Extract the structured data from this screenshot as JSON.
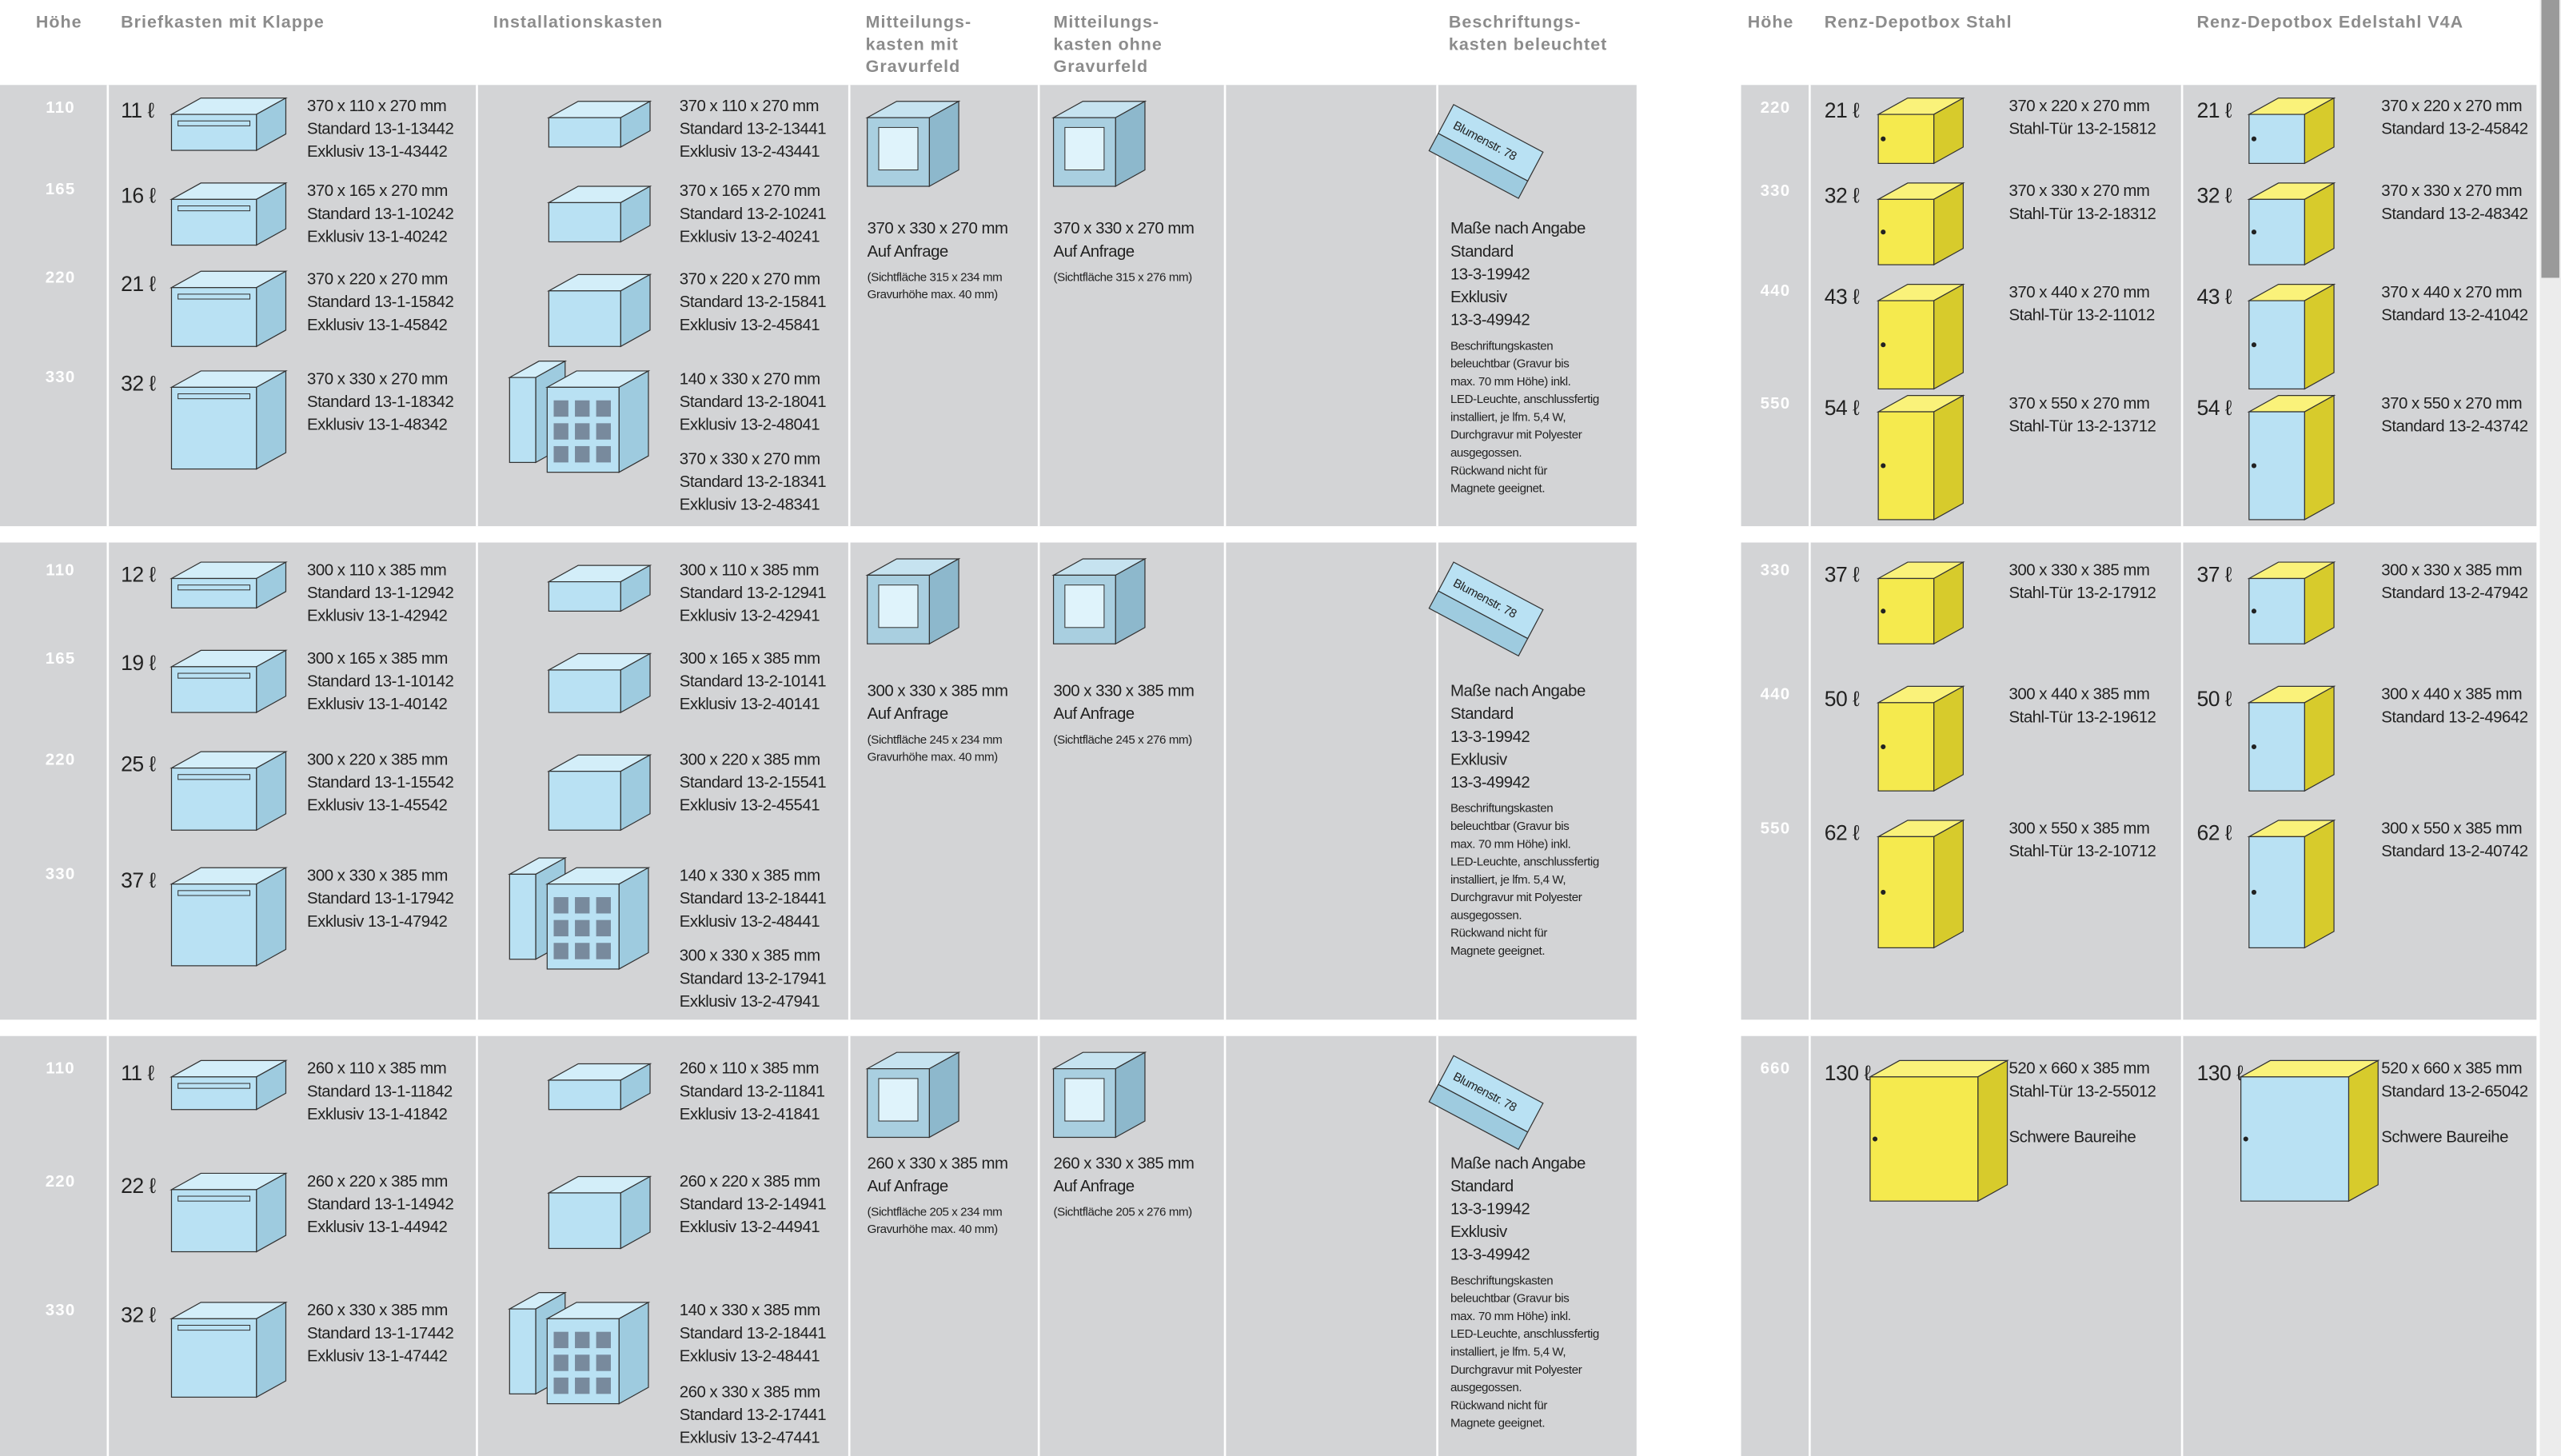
{
  "header": {
    "left": [
      "Höhe",
      "Briefkasten mit Klappe",
      "Installationskasten",
      [
        "Mitteilungs-",
        "kasten mit",
        "Gravurfeld"
      ],
      [
        "Mitteilungs-",
        "kasten ohne",
        "Gravurfeld"
      ],
      [
        "Beschriftungs-",
        "kasten beleuchtet"
      ]
    ],
    "right": [
      "Höhe",
      "Renz-Depotbox Stahl",
      "Renz-Depotbox Edelstahl V4A"
    ]
  },
  "sign_text": "Blumenstr. 78",
  "bands": [
    {
      "heights": [
        "110",
        "165",
        "220",
        "330"
      ],
      "briefkasten": [
        {
          "volume": "11 ℓ",
          "lines": [
            "370 x 110 x 270 mm",
            "Standard 13-1-13442",
            "Exklusiv 13-1-43442"
          ]
        },
        {
          "volume": "16 ℓ",
          "lines": [
            "370 x 165 x 270 mm",
            "Standard 13-1-10242",
            "Exklusiv 13-1-40242"
          ]
        },
        {
          "volume": "21 ℓ",
          "lines": [
            "370 x 220 x 270 mm",
            "Standard 13-1-15842",
            "Exklusiv 13-1-45842"
          ]
        },
        {
          "volume": "32 ℓ",
          "lines": [
            "370 x 330 x 270 mm",
            "Standard 13-1-18342",
            "Exklusiv 13-1-48342"
          ]
        }
      ],
      "installationskasten": [
        [
          "370 x 110 x 270 mm",
          "Standard 13-2-13441",
          "Exklusiv 13-2-43441"
        ],
        [
          "370 x 165 x 270 mm",
          "Standard 13-2-10241",
          "Exklusiv 13-2-40241"
        ],
        [
          "370 x 220 x 270 mm",
          "Standard 13-2-15841",
          "Exklusiv 13-2-45841"
        ],
        [
          "140 x 330 x 270 mm",
          "Standard 13-2-18041",
          "Exklusiv 13-2-48041"
        ],
        [
          "370 x 330 x 270 mm",
          "Standard 13-2-18341",
          "Exklusiv 13-2-48341"
        ]
      ],
      "mit_gravurfeld": {
        "lines": [
          "370 x 330 x 270 mm",
          "Auf Anfrage"
        ],
        "note": [
          "(Sichtfläche 315 x 234 mm",
          "Gravurhöhe max. 40 mm)"
        ]
      },
      "ohne_gravurfeld": {
        "lines": [
          "370 x 330 x 270 mm",
          "Auf Anfrage"
        ],
        "note": [
          "(Sichtfläche 315 x 276 mm)"
        ]
      },
      "beschriftung": {
        "lines": [
          "Maße nach Angabe",
          "Standard",
          "13-3-19942",
          "Exklusiv",
          "13-3-49942"
        ],
        "note": [
          "Beschriftungskasten",
          "beleuchtbar (Gravur bis",
          "max. 70 mm Höhe) inkl.",
          "LED-Leuchte, anschlussfertig",
          "installiert, je lfm. 5,4 W,",
          "Durchgravur mit Polyester",
          "ausgegossen.",
          "Rückwand nicht für",
          "Magnete geeignet."
        ]
      }
    },
    {
      "heights": [
        "110",
        "165",
        "220",
        "330"
      ],
      "briefkasten": [
        {
          "volume": "12 ℓ",
          "lines": [
            "300 x 110 x 385 mm",
            "Standard 13-1-12942",
            "Exklusiv 13-1-42942"
          ]
        },
        {
          "volume": "19 ℓ",
          "lines": [
            "300 x 165 x 385 mm",
            "Standard 13-1-10142",
            "Exklusiv 13-1-40142"
          ]
        },
        {
          "volume": "25 ℓ",
          "lines": [
            "300 x 220 x 385 mm",
            "Standard 13-1-15542",
            "Exklusiv 13-1-45542"
          ]
        },
        {
          "volume": "37 ℓ",
          "lines": [
            "300 x 330 x 385 mm",
            "Standard 13-1-17942",
            "Exklusiv 13-1-47942"
          ]
        }
      ],
      "installationskasten": [
        [
          "300 x 110 x 385 mm",
          "Standard 13-2-12941",
          "Exklusiv 13-2-42941"
        ],
        [
          "300 x 165 x 385 mm",
          "Standard 13-2-10141",
          "Exklusiv 13-2-40141"
        ],
        [
          "300 x 220 x 385 mm",
          "Standard 13-2-15541",
          "Exklusiv 13-2-45541"
        ],
        [
          "140 x 330 x 385 mm",
          "Standard 13-2-18441",
          "Exklusiv 13-2-48441"
        ],
        [
          "300 x 330 x 385 mm",
          "Standard 13-2-17941",
          "Exklusiv 13-2-47941"
        ]
      ],
      "mit_gravurfeld": {
        "lines": [
          "300 x 330 x 385 mm",
          "Auf Anfrage"
        ],
        "note": [
          "(Sichtfläche 245 x 234 mm",
          "Gravurhöhe max. 40 mm)"
        ]
      },
      "ohne_gravurfeld": {
        "lines": [
          "300 x 330 x 385 mm",
          "Auf Anfrage"
        ],
        "note": [
          "(Sichtfläche 245 x 276 mm)"
        ]
      },
      "beschriftung": {
        "lines": [
          "Maße nach Angabe",
          "Standard",
          "13-3-19942",
          "Exklusiv",
          "13-3-49942"
        ],
        "note": [
          "Beschriftungskasten",
          "beleuchtbar (Gravur bis",
          "max. 70 mm Höhe) inkl.",
          "LED-Leuchte, anschlussfertig",
          "installiert, je lfm. 5,4 W,",
          "Durchgravur mit Polyester",
          "ausgegossen.",
          "Rückwand nicht für",
          "Magnete geeignet."
        ]
      }
    },
    {
      "heights": [
        "110",
        "220",
        "330"
      ],
      "briefkasten": [
        {
          "volume": "11 ℓ",
          "lines": [
            "260 x 110 x 385 mm",
            "Standard 13-1-11842",
            "Exklusiv 13-1-41842"
          ]
        },
        {
          "volume": "22 ℓ",
          "lines": [
            "260 x 220 x 385 mm",
            "Standard 13-1-14942",
            "Exklusiv 13-1-44942"
          ]
        },
        {
          "volume": "32 ℓ",
          "lines": [
            "260 x 330 x 385 mm",
            "Standard 13-1-17442",
            "Exklusiv 13-1-47442"
          ]
        }
      ],
      "installationskasten": [
        [
          "260 x 110 x 385 mm",
          "Standard 13-2-11841",
          "Exklusiv 13-2-41841"
        ],
        [
          "260 x 220 x 385 mm",
          "Standard 13-2-14941",
          "Exklusiv 13-2-44941"
        ],
        [
          "140 x 330 x 385 mm",
          "Standard 13-2-18441",
          "Exklusiv 13-2-48441"
        ],
        [
          "260 x 330 x 385 mm",
          "Standard 13-2-17441",
          "Exklusiv 13-2-47441"
        ]
      ],
      "mit_gravurfeld": {
        "lines": [
          "260 x 330 x 385 mm",
          "Auf Anfrage"
        ],
        "note": [
          "(Sichtfläche 205 x 234 mm",
          "Gravurhöhe max. 40 mm)"
        ]
      },
      "ohne_gravurfeld": {
        "lines": [
          "260 x 330 x 385 mm",
          "Auf Anfrage"
        ],
        "note": [
          "(Sichtfläche 205 x 276 mm)"
        ]
      },
      "beschriftung": {
        "lines": [
          "Maße nach Angabe",
          "Standard",
          "13-3-19942",
          "Exklusiv",
          "13-3-49942"
        ],
        "note": [
          "Beschriftungskasten",
          "beleuchtbar (Gravur bis",
          "max. 70 mm Höhe) inkl.",
          "LED-Leuchte, anschlussfertig",
          "installiert, je lfm. 5,4 W,",
          "Durchgravur mit Polyester",
          "ausgegossen.",
          "Rückwand nicht für",
          "Magnete geeignet."
        ]
      }
    }
  ],
  "depot_bands": [
    {
      "heights": [
        "220",
        "330",
        "440",
        "550"
      ],
      "stahl": [
        {
          "volume": "21 ℓ",
          "lines": [
            "370 x 220 x 270 mm",
            "Stahl-Tür 13-2-15812"
          ]
        },
        {
          "volume": "32 ℓ",
          "lines": [
            "370 x 330 x 270 mm",
            "Stahl-Tür 13-2-18312"
          ]
        },
        {
          "volume": "43 ℓ",
          "lines": [
            "370 x 440 x 270 mm",
            "Stahl-Tür 13-2-11012"
          ]
        },
        {
          "volume": "54 ℓ",
          "lines": [
            "370 x 550 x 270 mm",
            "Stahl-Tür 13-2-13712"
          ]
        }
      ],
      "edelstahl": [
        {
          "volume": "21 ℓ",
          "lines": [
            "370 x 220 x 270 mm",
            "Standard 13-2-45842"
          ]
        },
        {
          "volume": "32 ℓ",
          "lines": [
            "370 x 330 x 270 mm",
            "Standard 13-2-48342"
          ]
        },
        {
          "volume": "43 ℓ",
          "lines": [
            "370 x 440 x 270 mm",
            "Standard 13-2-41042"
          ]
        },
        {
          "volume": "54 ℓ",
          "lines": [
            "370 x 550 x 270 mm",
            "Standard 13-2-43742"
          ]
        }
      ]
    },
    {
      "heights": [
        "330",
        "440",
        "550"
      ],
      "stahl": [
        {
          "volume": "37 ℓ",
          "lines": [
            "300 x 330 x 385 mm",
            "Stahl-Tür 13-2-17912"
          ]
        },
        {
          "volume": "50 ℓ",
          "lines": [
            "300 x 440 x 385 mm",
            "Stahl-Tür 13-2-19612"
          ]
        },
        {
          "volume": "62 ℓ",
          "lines": [
            "300 x 550 x 385 mm",
            "Stahl-Tür 13-2-10712"
          ]
        }
      ],
      "edelstahl": [
        {
          "volume": "37 ℓ",
          "lines": [
            "300 x 330 x 385 mm",
            "Standard 13-2-47942"
          ]
        },
        {
          "volume": "50 ℓ",
          "lines": [
            "300 x 440 x 385 mm",
            "Standard 13-2-49642"
          ]
        },
        {
          "volume": "62 ℓ",
          "lines": [
            "300 x 550 x 385 mm",
            "Standard 13-2-40742"
          ]
        }
      ]
    },
    {
      "heights": [
        "660"
      ],
      "stahl": [
        {
          "volume": "130 ℓ",
          "lines": [
            "520 x 660 x 385 mm",
            "Stahl-Tür 13-2-55012"
          ],
          "note": "Schwere Baureihe"
        }
      ],
      "edelstahl": [
        {
          "volume": "130 ℓ",
          "lines": [
            "520 x 660 x 385 mm",
            "Standard 13-2-65042"
          ],
          "note": "Schwere Baureihe"
        }
      ]
    }
  ]
}
